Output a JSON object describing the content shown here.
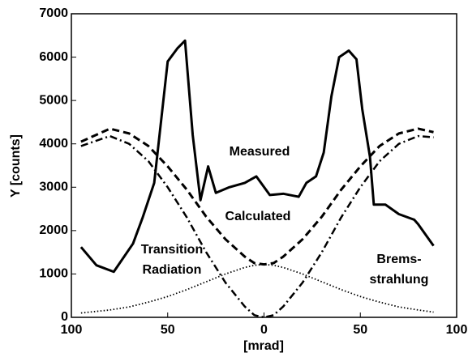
{
  "chart_data": {
    "type": "line",
    "x_label": "[mrad]",
    "y_label": "Y [counts]",
    "xlim": [
      -100,
      100
    ],
    "xticks": [
      {
        "value": -100,
        "label": "100"
      },
      {
        "value": -50,
        "label": "50"
      },
      0,
      50,
      100
    ],
    "ylim": [
      0,
      7000
    ],
    "yticks": [
      0,
      1000,
      2000,
      3000,
      4000,
      5000,
      6000,
      7000
    ],
    "series": [
      {
        "label": [
          "Measured"
        ],
        "color": "#000000",
        "style": "solid",
        "x": [
          -95,
          -87,
          -78,
          -68,
          -63,
          -57,
          -55,
          -50,
          -45,
          -41,
          -37,
          -33,
          -29,
          -25,
          -18,
          -10,
          -4,
          3,
          10,
          18,
          22,
          27,
          31,
          35,
          39,
          44,
          48,
          51,
          55,
          57,
          63,
          70,
          78,
          80,
          88
        ],
        "values": [
          1620,
          1200,
          1050,
          1700,
          2300,
          3100,
          3900,
          5900,
          6200,
          6380,
          4200,
          2700,
          3480,
          2870,
          3000,
          3100,
          3250,
          2820,
          2850,
          2780,
          3100,
          3250,
          3800,
          5100,
          6000,
          6150,
          5950,
          4800,
          3700,
          2600,
          2600,
          2380,
          2250,
          2150,
          1650
        ]
      },
      {
        "label": [
          "Calculated"
        ],
        "color": "#000000",
        "style": "dashed",
        "x": [
          -95,
          -80,
          -70,
          -60,
          -50,
          -40,
          -30,
          -20,
          -10,
          -5,
          0,
          5,
          10,
          20,
          30,
          40,
          50,
          60,
          70,
          80,
          88
        ],
        "values": [
          4050,
          4350,
          4240,
          3950,
          3480,
          2940,
          2320,
          1800,
          1400,
          1250,
          1220,
          1250,
          1400,
          1800,
          2320,
          2940,
          3480,
          3950,
          4240,
          4350,
          4270
        ]
      },
      {
        "label": [
          "Transition",
          "Radiation"
        ],
        "color": "#000000",
        "style": "dashdot",
        "x": [
          -95,
          -80,
          -70,
          -60,
          -50,
          -40,
          -30,
          -20,
          -10,
          -5,
          0,
          5,
          10,
          20,
          30,
          40,
          50,
          60,
          70,
          80,
          88
        ],
        "values": [
          3950,
          4180,
          4000,
          3600,
          3000,
          2300,
          1500,
          800,
          250,
          50,
          0,
          50,
          250,
          800,
          1500,
          2300,
          3000,
          3600,
          4000,
          4180,
          4150
        ]
      },
      {
        "label": [
          "Brems-",
          "strahlung"
        ],
        "color": "#000000",
        "style": "dotted",
        "x": [
          -95,
          -80,
          -70,
          -60,
          -50,
          -40,
          -30,
          -20,
          -10,
          -5,
          0,
          5,
          10,
          20,
          30,
          40,
          50,
          60,
          70,
          80,
          88
        ],
        "values": [
          100,
          170,
          240,
          350,
          480,
          640,
          820,
          1000,
          1150,
          1200,
          1220,
          1200,
          1150,
          1000,
          820,
          640,
          480,
          350,
          240,
          170,
          120
        ]
      }
    ]
  }
}
